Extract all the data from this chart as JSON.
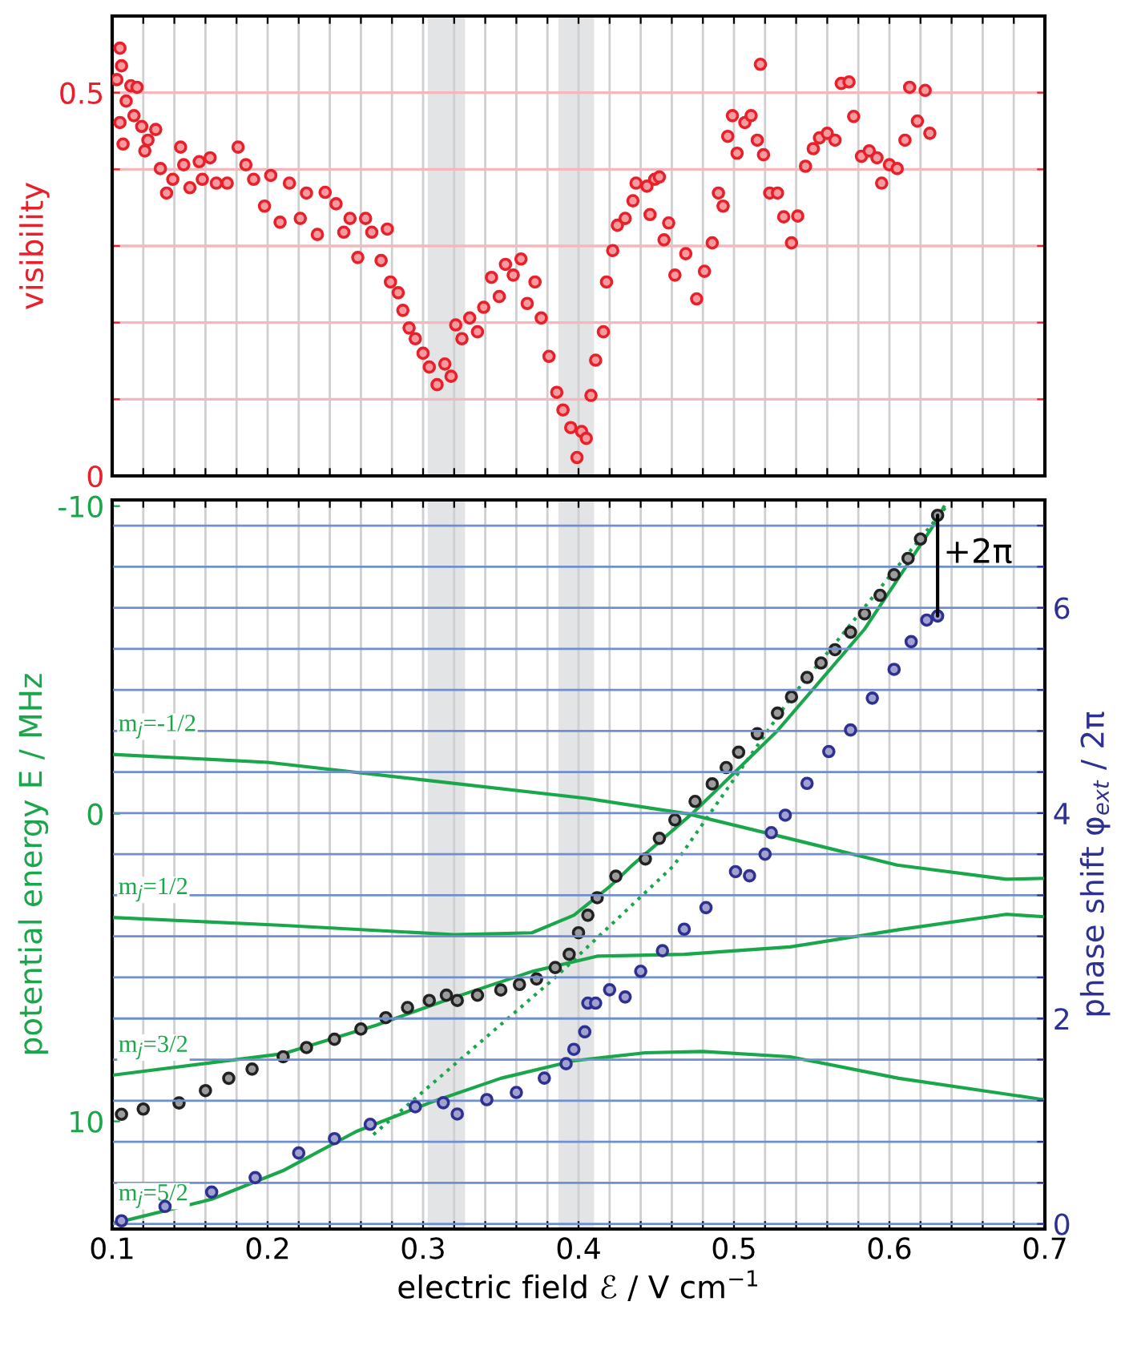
{
  "chart_data": [
    {
      "type": "scatter",
      "ylabel": "visibility",
      "xlim": [
        0.1,
        0.7
      ],
      "ylim": [
        0,
        0.6
      ],
      "xticks": [
        0.1,
        {
          "value": 0.12,
          "label": null
        },
        {
          "value": 0.14,
          "label": null
        },
        {
          "value": 0.16,
          "label": null
        },
        {
          "value": 0.18,
          "label": null
        },
        0.2,
        {
          "value": 0.22,
          "label": null
        },
        {
          "value": 0.24,
          "label": null
        },
        {
          "value": 0.26,
          "label": null
        },
        {
          "value": 0.28,
          "label": null
        },
        0.3,
        {
          "value": 0.32,
          "label": null
        },
        {
          "value": 0.34,
          "label": null
        },
        {
          "value": 0.36,
          "label": null
        },
        {
          "value": 0.38,
          "label": null
        },
        0.4,
        {
          "value": 0.42,
          "label": null
        },
        {
          "value": 0.44,
          "label": null
        },
        {
          "value": 0.46,
          "label": null
        },
        {
          "value": 0.48,
          "label": null
        },
        0.5,
        {
          "value": 0.52,
          "label": null
        },
        {
          "value": 0.54,
          "label": null
        },
        {
          "value": 0.56,
          "label": null
        },
        {
          "value": 0.58,
          "label": null
        },
        0.6,
        {
          "value": 0.62,
          "label": null
        },
        {
          "value": 0.64,
          "label": null
        },
        {
          "value": 0.66,
          "label": null
        },
        {
          "value": 0.68,
          "label": null
        },
        0.7
      ],
      "yticks": [
        0,
        {
          "value": 0.1,
          "label": null
        },
        {
          "value": 0.2,
          "label": null
        },
        {
          "value": 0.3,
          "label": null
        },
        {
          "value": 0.4,
          "label": null
        },
        0.5
      ],
      "tick_labels": "y",
      "grid": true,
      "marker": "circle",
      "bands": [
        {
          "axis": "x",
          "from": 0.303,
          "to": 0.327,
          "color": "#e3e4e6"
        },
        {
          "axis": "x",
          "from": 0.387,
          "to": 0.41,
          "color": "#e3e4e6"
        }
      ],
      "series": [
        {
          "color": "#e8202a",
          "x": [
            0.103,
            0.105,
            0.106,
            0.105,
            0.107,
            0.109,
            0.112,
            0.114,
            0.116,
            0.119,
            0.121,
            0.123,
            0.128,
            0.131,
            0.135,
            0.139,
            0.144,
            0.146,
            0.15,
            0.156,
            0.158,
            0.163,
            0.167,
            0.174,
            0.181,
            0.186,
            0.191,
            0.198,
            0.202,
            0.208,
            0.214,
            0.221,
            0.225,
            0.232,
            0.237,
            0.244,
            0.249,
            0.253,
            0.258,
            0.263,
            0.267,
            0.273,
            0.277,
            0.279,
            0.284,
            0.287,
            0.291,
            0.295,
            0.3,
            0.304,
            0.309,
            0.314,
            0.318,
            0.321,
            0.325,
            0.33,
            0.335,
            0.339,
            0.344,
            0.349,
            0.353,
            0.358,
            0.363,
            0.367,
            0.372,
            0.376,
            0.381,
            0.386,
            0.39,
            0.395,
            0.399,
            0.402,
            0.405,
            0.408,
            0.411,
            0.416,
            0.418,
            0.422,
            0.425,
            0.43,
            0.435,
            0.437,
            0.444,
            0.449,
            0.452,
            0.446,
            0.455,
            0.458,
            0.462,
            0.469,
            0.476,
            0.481,
            0.486,
            0.49,
            0.493,
            0.496,
            0.499,
            0.502,
            0.507,
            0.511,
            0.515,
            0.517,
            0.519,
            0.523,
            0.528,
            0.532,
            0.537,
            0.541,
            0.546,
            0.551,
            0.555,
            0.56,
            0.565,
            0.569,
            0.574,
            0.577,
            0.582,
            0.587,
            0.592,
            0.595,
            0.6,
            0.605,
            0.61,
            0.613,
            0.618,
            0.623,
            0.626
          ],
          "values": [
            0.517,
            0.558,
            0.535,
            0.461,
            0.433,
            0.489,
            0.509,
            0.47,
            0.507,
            0.456,
            0.424,
            0.438,
            0.452,
            0.401,
            0.369,
            0.387,
            0.429,
            0.406,
            0.376,
            0.41,
            0.387,
            0.415,
            0.382,
            0.382,
            0.429,
            0.406,
            0.387,
            0.352,
            0.392,
            0.331,
            0.382,
            0.336,
            0.369,
            0.315,
            0.37,
            0.355,
            0.318,
            0.336,
            0.285,
            0.336,
            0.318,
            0.281,
            0.322,
            0.253,
            0.239,
            0.216,
            0.193,
            0.179,
            0.16,
            0.142,
            0.119,
            0.146,
            0.13,
            0.197,
            0.179,
            0.206,
            0.188,
            0.22,
            0.259,
            0.234,
            0.276,
            0.262,
            0.283,
            0.225,
            0.253,
            0.206,
            0.156,
            0.109,
            0.086,
            0.063,
            0.024,
            0.058,
            0.049,
            0.105,
            0.151,
            0.188,
            0.253,
            0.294,
            0.327,
            0.336,
            0.359,
            0.382,
            0.378,
            0.387,
            0.39,
            0.341,
            0.308,
            0.33,
            0.262,
            0.29,
            0.231,
            0.267,
            0.304,
            0.369,
            0.352,
            0.443,
            0.47,
            0.421,
            0.461,
            0.47,
            0.438,
            0.537,
            0.419,
            0.369,
            0.369,
            0.338,
            0.304,
            0.339,
            0.404,
            0.427,
            0.441,
            0.447,
            0.438,
            0.512,
            0.514,
            0.469,
            0.417,
            0.424,
            0.415,
            0.382,
            0.406,
            0.401,
            0.438,
            0.507,
            0.463,
            0.503,
            0.447
          ]
        }
      ]
    },
    {
      "type": "line",
      "xlabel": "electric field ℰ / V cm$^{−1}$",
      "ylabel": "potential energy E / MHz",
      "y2label": "phase shift φ$_{ext}$ / 2π",
      "xlim": [
        0.1,
        0.7
      ],
      "ylim": [
        13.5,
        -10.2
      ],
      "y2lim": [
        -0.05,
        7.05
      ],
      "xticks": [
        0.1,
        {
          "value": 0.12,
          "label": null
        },
        {
          "value": 0.14,
          "label": null
        },
        {
          "value": 0.16,
          "label": null
        },
        {
          "value": 0.18,
          "label": null
        },
        0.2,
        {
          "value": 0.22,
          "label": null
        },
        {
          "value": 0.24,
          "label": null
        },
        {
          "value": 0.26,
          "label": null
        },
        {
          "value": 0.28,
          "label": null
        },
        0.3,
        {
          "value": 0.32,
          "label": null
        },
        {
          "value": 0.34,
          "label": null
        },
        {
          "value": 0.36,
          "label": null
        },
        {
          "value": 0.38,
          "label": null
        },
        0.4,
        {
          "value": 0.42,
          "label": null
        },
        {
          "value": 0.44,
          "label": null
        },
        {
          "value": 0.46,
          "label": null
        },
        {
          "value": 0.48,
          "label": null
        },
        0.5,
        {
          "value": 0.52,
          "label": null
        },
        {
          "value": 0.54,
          "label": null
        },
        {
          "value": 0.56,
          "label": null
        },
        {
          "value": 0.58,
          "label": null
        },
        0.6,
        {
          "value": 0.62,
          "label": null
        },
        {
          "value": 0.64,
          "label": null
        },
        {
          "value": 0.66,
          "label": null
        },
        {
          "value": 0.68,
          "label": null
        },
        0.7
      ],
      "yticks": [
        -10,
        0,
        10
      ],
      "y2ticks": [
        0,
        {
          "value": 0.4,
          "label": null
        },
        {
          "value": 0.8,
          "label": null
        },
        {
          "value": 1.2,
          "label": null
        },
        {
          "value": 1.6,
          "label": null
        },
        2,
        {
          "value": 2.4,
          "label": null
        },
        {
          "value": 2.8,
          "label": null
        },
        {
          "value": 3.2,
          "label": null
        },
        {
          "value": 3.6,
          "label": null
        },
        4,
        {
          "value": 4.4,
          "label": null
        },
        {
          "value": 4.8,
          "label": null
        },
        {
          "value": 5.2,
          "label": null
        },
        {
          "value": 5.6,
          "label": null
        },
        6,
        {
          "value": 6.4,
          "label": null
        },
        {
          "value": 6.8,
          "label": null
        }
      ],
      "grid": true,
      "bands": [
        {
          "axis": "x",
          "from": 0.303,
          "to": 0.327,
          "color": "#e3e4e6"
        },
        {
          "axis": "x",
          "from": 0.387,
          "to": 0.41,
          "color": "#e3e4e6"
        }
      ],
      "annotations": [
        {
          "text": "+2π",
          "x": 0.631,
          "y": -9.7
        }
      ],
      "series": [
        {
          "name": "m$_{j}$=-1/2",
          "type": "line",
          "color": "#1aa64a",
          "x": [
            0.1,
            0.2,
            0.3,
            0.405,
            0.47,
            0.535,
            0.605,
            0.675,
            0.7
          ],
          "values": [
            -1.93,
            -1.67,
            -1.1,
            -0.5,
            0,
            0.8,
            1.67,
            2.13,
            2.1
          ]
        },
        {
          "name": "m$_{j}$=1/2",
          "type": "line",
          "color": "#1aa64a",
          "x": [
            0.1,
            0.21,
            0.32,
            0.37,
            0.397,
            0.42,
            0.434,
            0.473,
            0.528,
            0.584,
            0.63,
            0.635
          ],
          "values": [
            3.37,
            3.63,
            3.93,
            3.87,
            3.3,
            2.37,
            1.7,
            0,
            -2.7,
            -6.0,
            -9.5,
            -9.97
          ]
        },
        {
          "name": "m$_{j}$=3/2",
          "type": "line",
          "color": "#1aa64a",
          "x": [
            0.1,
            0.21,
            0.27,
            0.32,
            0.37,
            0.412,
            0.468,
            0.536,
            0.606,
            0.675,
            0.7
          ],
          "values": [
            8.5,
            7.8,
            6.87,
            5.97,
            5.13,
            4.63,
            4.57,
            4.33,
            3.77,
            3.27,
            3.35
          ]
        },
        {
          "name": "m$_{j}$=5/2",
          "type": "line",
          "color": "#1aa64a",
          "x": [
            0.1,
            0.164,
            0.21,
            0.257,
            0.304,
            0.35,
            0.397,
            0.443,
            0.48,
            0.536,
            0.606,
            0.7
          ],
          "values": [
            13.33,
            12.53,
            11.6,
            10.33,
            9.4,
            8.6,
            8.03,
            7.77,
            7.73,
            7.9,
            8.6,
            9.3
          ]
        },
        {
          "type": "line",
          "line_style": "dotted",
          "color": "#1aa64a",
          "x": [
            0.268,
            0.384,
            0.461,
            0.536,
            0.638
          ],
          "values": [
            10.43,
            5.37,
            1.7,
            -3.73,
            -10.07
          ]
        },
        {
          "type": "scatter",
          "marker": "circle",
          "color": "#222222",
          "x": [
            0.106,
            0.12,
            0.143,
            0.16,
            0.175,
            0.19,
            0.21,
            0.225,
            0.243,
            0.26,
            0.276,
            0.29,
            0.304,
            0.315,
            0.322,
            0.335,
            0.35,
            0.362,
            0.373,
            0.385,
            0.394,
            0.4,
            0.406,
            0.412,
            0.424,
            0.443,
            0.452,
            0.462,
            0.475,
            0.486,
            0.495,
            0.503,
            0.515,
            0.528,
            0.537,
            0.547,
            0.556,
            0.565,
            0.575,
            0.584,
            0.594,
            0.603,
            0.612,
            0.62,
            0.631
          ],
          "values": [
            9.77,
            9.6,
            9.4,
            9.0,
            8.6,
            8.3,
            7.9,
            7.6,
            7.33,
            7.0,
            6.63,
            6.3,
            6.07,
            5.9,
            6.07,
            5.9,
            5.73,
            5.55,
            5.37,
            5.0,
            4.57,
            3.87,
            3.3,
            2.73,
            2.03,
            1.47,
            0.8,
            0.2,
            -0.4,
            -0.97,
            -1.5,
            -2.0,
            -2.6,
            -3.27,
            -3.8,
            -4.43,
            -4.9,
            -5.33,
            -5.9,
            -6.5,
            -7.1,
            -7.77,
            -8.3,
            -8.93,
            -9.7
          ]
        },
        {
          "type": "scatter",
          "marker": "circle",
          "axis": "y2",
          "color": "#2e3192",
          "x": [
            0.106,
            0.134,
            0.164,
            0.192,
            0.22,
            0.243,
            0.266,
            0.295,
            0.313,
            0.322,
            0.341,
            0.36,
            0.378,
            0.392,
            0.397,
            0.404,
            0.406,
            0.411,
            0.42,
            0.43,
            0.44,
            0.454,
            0.468,
            0.482,
            0.501,
            0.51,
            0.52,
            0.524,
            0.533,
            0.547,
            0.561,
            0.575,
            0.589,
            0.603,
            0.614,
            0.624,
            0.631
          ],
          "values": [
            0.03,
            0.17,
            0.31,
            0.45,
            0.69,
            0.83,
            0.97,
            1.14,
            1.18,
            1.07,
            1.21,
            1.28,
            1.42,
            1.56,
            1.7,
            1.87,
            2.15,
            2.15,
            2.28,
            2.21,
            2.46,
            2.66,
            2.87,
            3.08,
            3.43,
            3.39,
            3.6,
            3.81,
            3.98,
            4.29,
            4.6,
            4.81,
            5.12,
            5.4,
            5.67,
            5.88,
            5.92
          ]
        }
      ]
    }
  ]
}
